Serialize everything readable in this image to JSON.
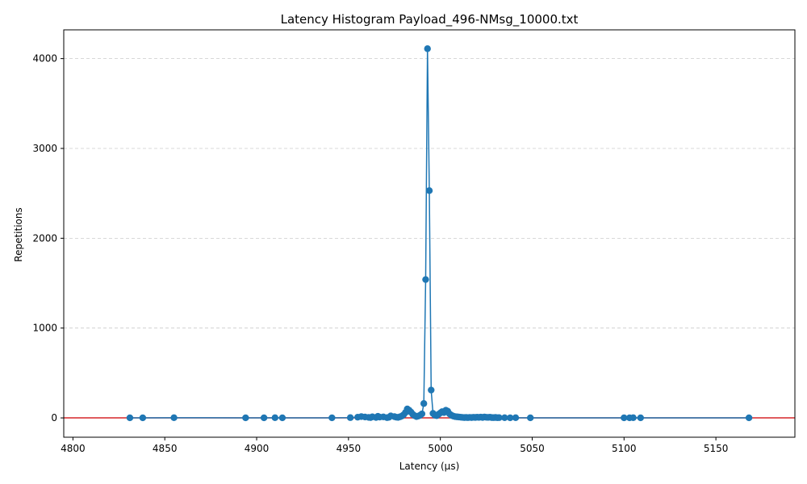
{
  "chart_data": {
    "type": "scatter",
    "title": "Latency Histogram Payload_496-NMsg_10000.txt",
    "xlabel": "Latency (µs)",
    "ylabel": "Repetitions",
    "xlim": [
      4795,
      5193
    ],
    "ylim": [
      -215,
      4320
    ],
    "xticks": [
      4800,
      4850,
      4900,
      4950,
      5000,
      5050,
      5100,
      5150
    ],
    "yticks": [
      0,
      1000,
      2000,
      3000,
      4000
    ],
    "grid": {
      "y": true,
      "x": false,
      "style": "dashed"
    },
    "baseline": {
      "y": 0,
      "color": "#d62728"
    },
    "colors": {
      "series": "#1f77b4",
      "baseline": "#d62728",
      "grid": "#cccccc"
    },
    "series": [
      {
        "x": [
          4831,
          4838,
          4855,
          4894,
          4904,
          4910,
          4914,
          4941,
          4951,
          4955,
          4957,
          4959,
          4961,
          4962,
          4963,
          4965,
          4966,
          4967,
          4969,
          4971,
          4972,
          4973,
          4975,
          4976,
          4977,
          4978,
          4979,
          4980,
          4981,
          4982,
          4983,
          4984,
          4985,
          4986,
          4987,
          4988,
          4989,
          4990,
          4991,
          4992,
          4993,
          4994,
          4995,
          4996,
          4997,
          4998,
          4999,
          5000,
          5001,
          5002,
          5003,
          5004,
          5005,
          5006,
          5007,
          5008,
          5009,
          5010,
          5011,
          5012,
          5013,
          5014,
          5015,
          5016,
          5017,
          5018,
          5019,
          5020,
          5021,
          5022,
          5023,
          5024,
          5025,
          5026,
          5027,
          5028,
          5029,
          5030,
          5031,
          5032,
          5035,
          5038,
          5041,
          5049,
          5100,
          5103,
          5105,
          5109,
          5168
        ],
        "y": [
          1,
          1,
          2,
          1,
          1,
          2,
          1,
          1,
          3,
          8,
          15,
          10,
          6,
          4,
          12,
          5,
          18,
          9,
          11,
          3,
          7,
          22,
          14,
          8,
          6,
          12,
          20,
          35,
          60,
          100,
          85,
          65,
          40,
          25,
          15,
          20,
          30,
          45,
          160,
          1540,
          4110,
          2530,
          310,
          50,
          30,
          25,
          40,
          55,
          70,
          60,
          85,
          75,
          45,
          30,
          20,
          15,
          12,
          10,
          8,
          6,
          4,
          5,
          3,
          6,
          4,
          7,
          5,
          8,
          6,
          9,
          5,
          10,
          7,
          6,
          8,
          4,
          3,
          5,
          2,
          3,
          2,
          1,
          2,
          1,
          1,
          1,
          2,
          1,
          1
        ]
      }
    ]
  }
}
